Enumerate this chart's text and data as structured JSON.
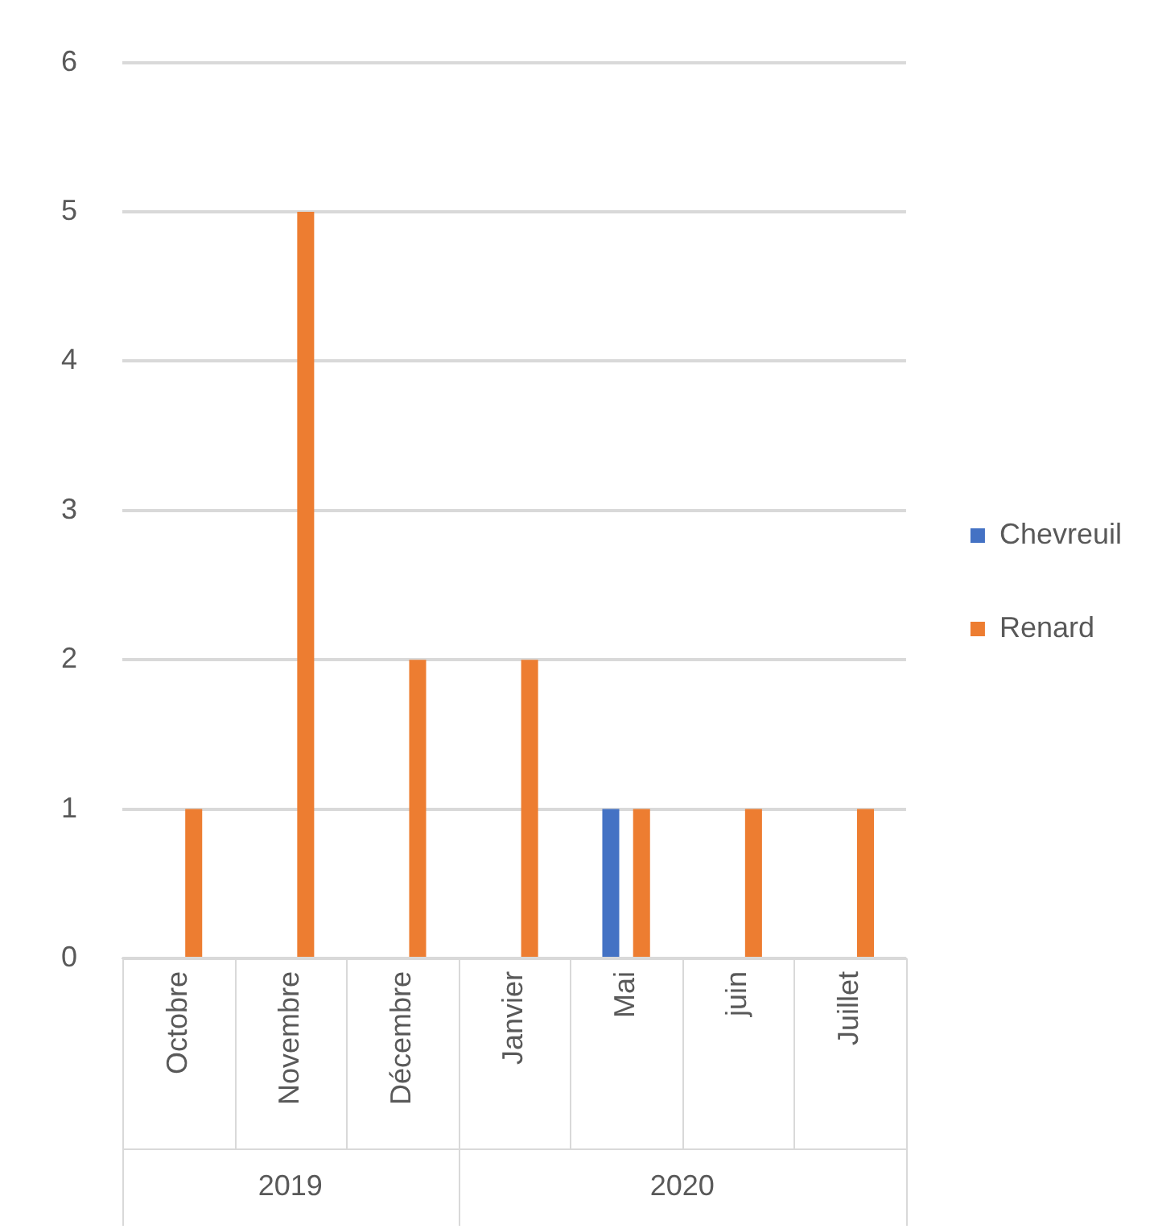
{
  "chart_data": {
    "type": "bar",
    "categories": [
      "Octobre",
      "Novembre",
      "Décembre",
      "Janvier",
      "Mai",
      "juin",
      "Juillet"
    ],
    "series": [
      {
        "name": "Chevreuil",
        "color": "#4472c4",
        "values": [
          0,
          0,
          0,
          0,
          1,
          0,
          0
        ]
      },
      {
        "name": "Renard",
        "color": "#ed7d31",
        "values": [
          1,
          5,
          2,
          2,
          1,
          1,
          1
        ]
      }
    ],
    "ylim": [
      0,
      6
    ],
    "yticks": [
      0,
      1,
      2,
      3,
      4,
      5,
      6
    ],
    "grid": "y",
    "legend": "right",
    "annotations": [
      "2019",
      "2020"
    ]
  }
}
